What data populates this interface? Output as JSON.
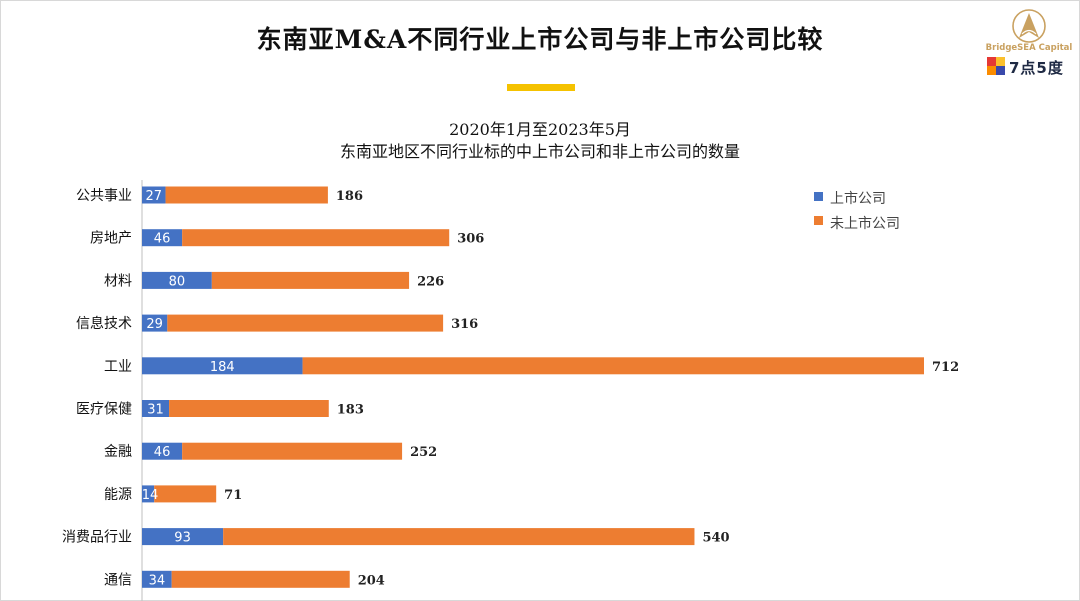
{
  "header": {
    "title": "东南亚M&A不同行业上市公司与非上市公司比较",
    "subtitle_line1": "2020年1月至2023年5月",
    "subtitle_line2": "东南亚地区不同行业标的中上市公司和非上市公司的数量"
  },
  "logo": {
    "name": "BridgeSEA Capital",
    "brand": "7点5度"
  },
  "colors": {
    "listed": "#4472c4",
    "unlisted": "#ed7d31",
    "accent": "#f5c200"
  },
  "chart_data": {
    "type": "bar",
    "orientation": "horizontal",
    "stacked": true,
    "categories": [
      "公共事业",
      "房地产",
      "材料",
      "信息技术",
      "工业",
      "医疗保健",
      "金融",
      "能源",
      "消费品行业",
      "通信"
    ],
    "series": [
      {
        "name": "上市公司",
        "values": [
          27,
          46,
          80,
          29,
          184,
          31,
          46,
          14,
          93,
          34
        ]
      },
      {
        "name": "未上市公司",
        "values": [
          186,
          306,
          226,
          316,
          712,
          183,
          252,
          71,
          540,
          204
        ]
      }
    ],
    "legend_position": "top-right",
    "title": "2020年1月至2023年5月 东南亚地区不同行业标的中上市公司和非上市公司的数量"
  }
}
